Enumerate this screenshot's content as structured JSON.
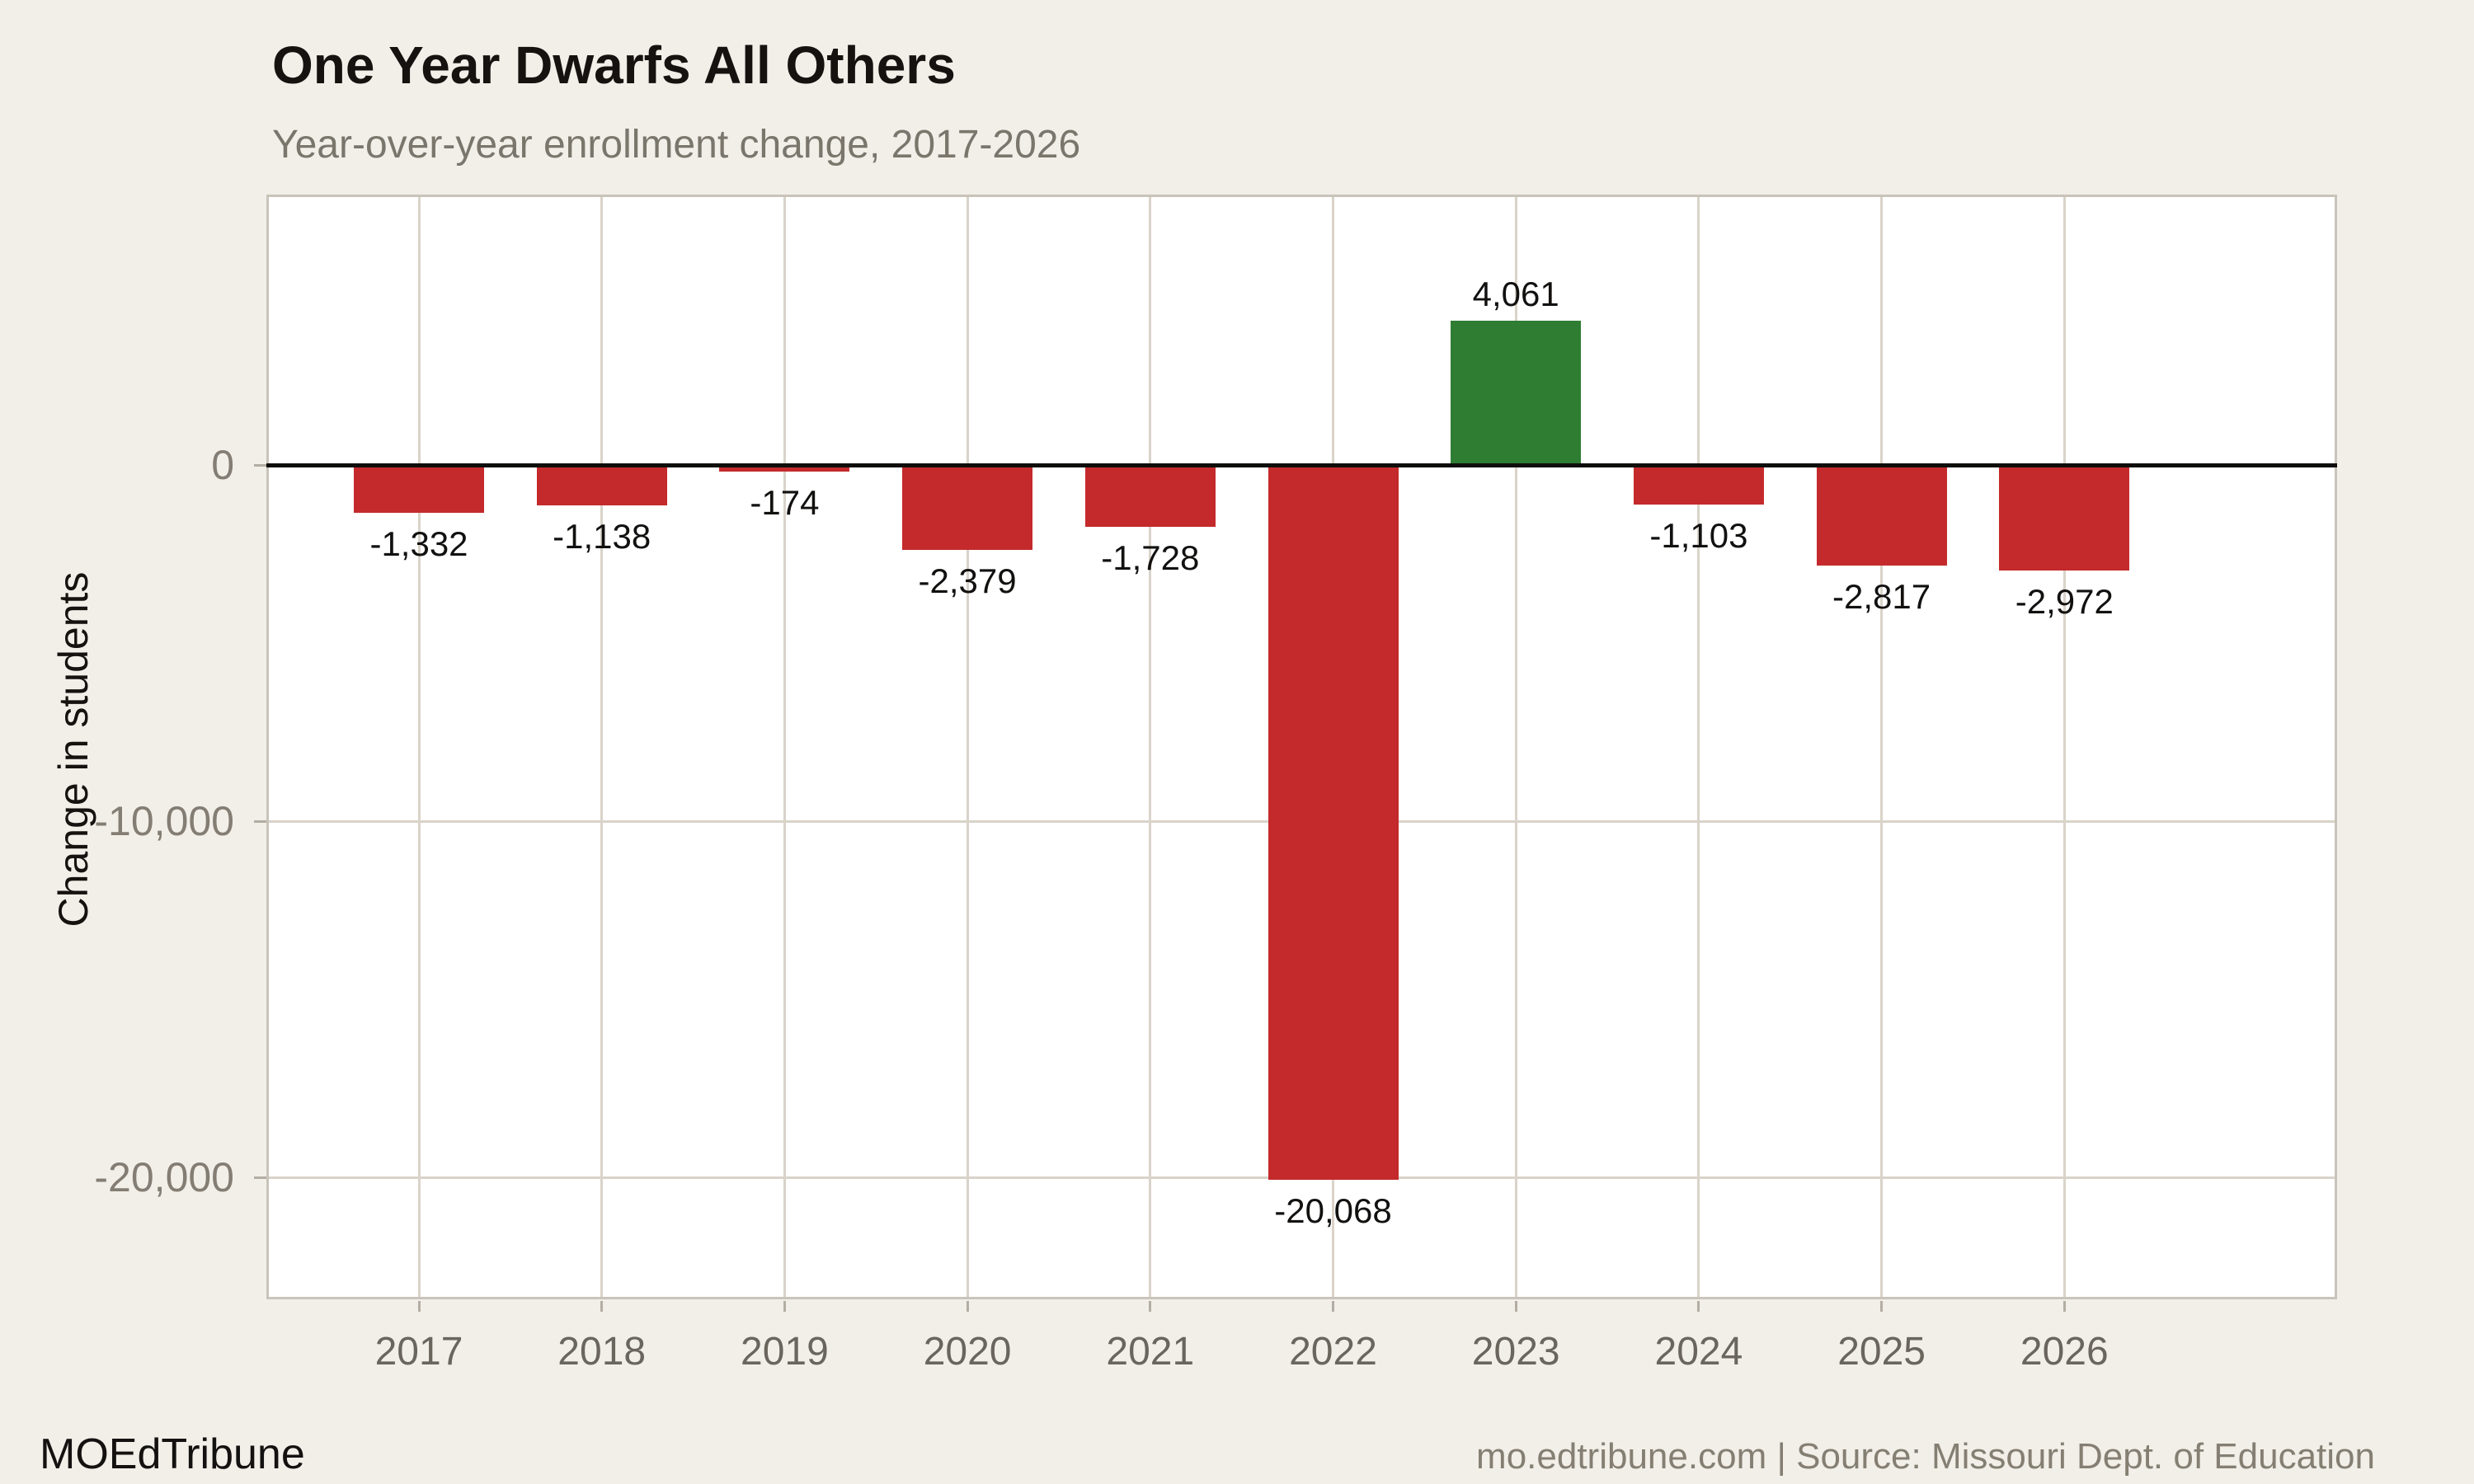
{
  "header": {
    "title": "One Year Dwarfs All Others",
    "subtitle": "Year-over-year enrollment change, 2017-2026"
  },
  "footer": {
    "brand": "MOEdTribune",
    "source": "mo.edtribune.com | Source: Missouri Dept. of Education"
  },
  "chart_data": {
    "type": "bar",
    "title": "One Year Dwarfs All Others",
    "subtitle": "Year-over-year enrollment change, 2017-2026",
    "categories": [
      "2017",
      "2018",
      "2019",
      "2020",
      "2021",
      "2022",
      "2023",
      "2024",
      "2025",
      "2026"
    ],
    "values": [
      -1332,
      -1138,
      -174,
      -2379,
      -1728,
      -20068,
      4061,
      -1103,
      -2817,
      -2972
    ],
    "value_labels": [
      "-1,332",
      "-1,138",
      "-174",
      "-2,379",
      "-1,728",
      "-20,068",
      "4,061",
      "-1,103",
      "-2,817",
      "-2,972"
    ],
    "xlabel": "",
    "ylabel": "Change in students",
    "yticks": [
      {
        "value": 0,
        "label": "0"
      },
      {
        "value": -10000,
        "label": "-10,000"
      },
      {
        "value": -20000,
        "label": "-20,000"
      }
    ],
    "ylim": [
      -23400,
      7600
    ],
    "grid": "on",
    "legend": "none",
    "colors": {
      "negative_bar": "#c42a2c",
      "positive_bar": "#2e7d33",
      "zero_line": "#0f0e0c",
      "background": "#f2efe9",
      "panel_background": "#ffffff"
    }
  }
}
